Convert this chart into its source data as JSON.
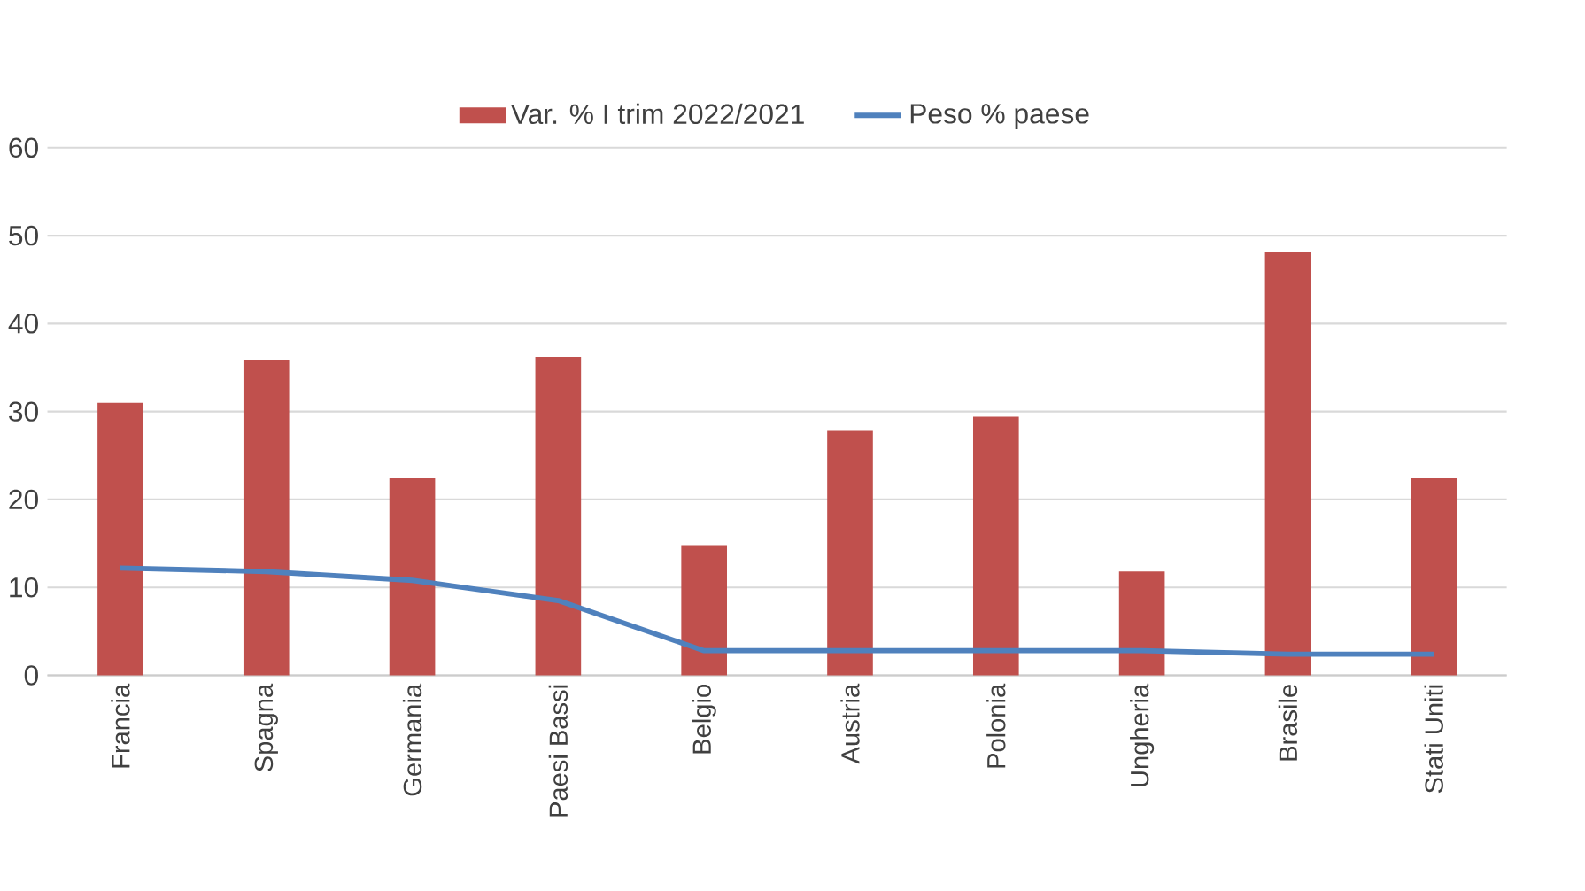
{
  "chart_data": {
    "type": "bar",
    "categories": [
      "Francia",
      "Spagna",
      "Germania",
      "Paesi Bassi",
      "Belgio",
      "Austria",
      "Polonia",
      "Ungheria",
      "Brasile",
      "Stati Uniti"
    ],
    "series": [
      {
        "name": "Var.  % I trim 2022/2021",
        "color": "#c0504d",
        "values": [
          31,
          35.8,
          22.4,
          36.2,
          14.8,
          27.8,
          29.4,
          11.8,
          48.2,
          22.4
        ]
      },
      {
        "name": "Peso % paese",
        "type": "line",
        "color": "#4f81bd",
        "values": [
          12.2,
          11.8,
          10.8,
          8.5,
          2.8,
          2.8,
          2.8,
          2.8,
          2.4,
          2.4
        ]
      }
    ],
    "ylim": [
      0,
      60
    ],
    "yticks": [
      0,
      10,
      20,
      30,
      40,
      50,
      60
    ],
    "grid": "y",
    "legend": "top",
    "marker": "none",
    "line_style": "solid"
  }
}
